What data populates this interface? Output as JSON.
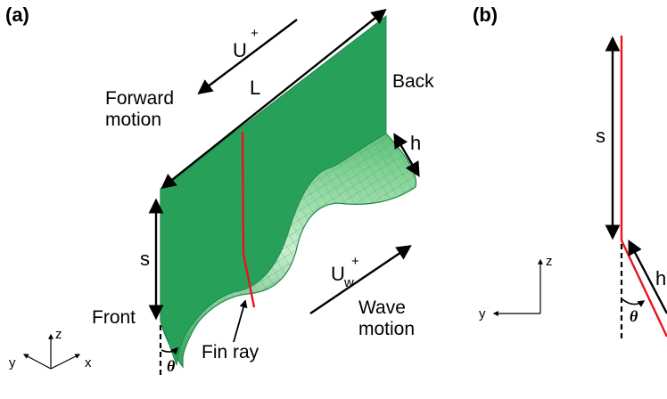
{
  "panel_a": {
    "label": "(a)",
    "u_plus": "U",
    "u_plus_sup": "+",
    "L": "L",
    "forward_motion_line1": "Forward",
    "forward_motion_line2": "motion",
    "back": "Back",
    "h": "h",
    "s": "s",
    "front": "Front",
    "fin_ray": "Fin ray",
    "uw_plus": "U",
    "uw_sub": "w",
    "uw_sup": "+",
    "wave_motion_line1": "Wave",
    "wave_motion_line2": "motion",
    "theta": "θ",
    "axis_z": "z",
    "axis_y": "y",
    "axis_x": "x"
  },
  "panel_b": {
    "label": "(b)",
    "s": "s",
    "h": "h",
    "theta": "θ",
    "axis_z": "z",
    "axis_y": "y"
  },
  "colors": {
    "fin_green": "#27a05a",
    "fin_mesh": "#b9e7c1",
    "fin_ray": "#e8141b",
    "ink": "#000000"
  }
}
